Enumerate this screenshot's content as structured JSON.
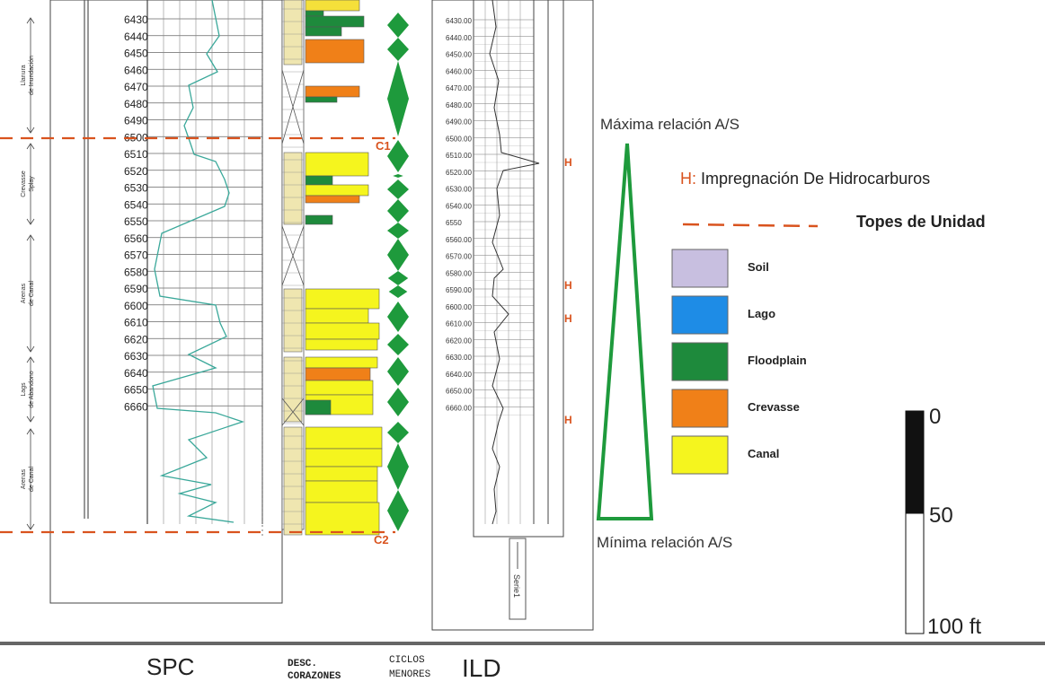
{
  "spc_track": {
    "depth_ticks": [
      "6430",
      "6440",
      "6450",
      "6460",
      "6470",
      "6480",
      "6490",
      "6500",
      "6510",
      "6520",
      "6530",
      "6540",
      "6550",
      "6560",
      "6570",
      "6580",
      "6590",
      "6600",
      "6610",
      "6620",
      "6630",
      "6640",
      "6650",
      "6660"
    ],
    "units": [
      {
        "label_lines": [
          "Llanura",
          "de Inundación"
        ]
      },
      {
        "label_lines": [
          "Crevasse",
          "Splay"
        ]
      },
      {
        "label_lines": [
          "Arenas",
          "de Canal"
        ]
      },
      {
        "label_lines": [
          "Lags",
          "de Abandono"
        ]
      },
      {
        "label_lines": [
          "Arenas",
          "de Canal"
        ]
      }
    ],
    "title": "SPC"
  },
  "core_track": {
    "title_line1": "DESC.",
    "title_line2": "CORAZONES"
  },
  "cycles_track": {
    "title_line1": "CICLOS",
    "title_line2": "MENORES"
  },
  "ild_track": {
    "depth_ticks": [
      "6430.00",
      "6440.00",
      "6450.00",
      "6460.00",
      "6470.00",
      "6480.00",
      "6490.00",
      "6500.00",
      "6510.00",
      "6520.00",
      "6530.00",
      "6540.00",
      "6550",
      "6560.00",
      "6570.00",
      "6580.00",
      "6590.00",
      "6600.00",
      "6610.00",
      "6620.00",
      "6630.00",
      "6640.00",
      "6650.00",
      "6660.00"
    ],
    "title": "ILD",
    "series_label": "Serie1",
    "h_marks": [
      "H",
      "H",
      "H",
      "H"
    ]
  },
  "boundaries": {
    "top": "C1",
    "bottom": "C2"
  },
  "as_ratio": {
    "max_label": "Máxima relación A/S",
    "min_label": "Mínima relación A/S"
  },
  "legend": {
    "h_prefix": "H:",
    "h_text": " Impregnación De Hidrocarburos",
    "tops_text": "Topes de Unidad",
    "items": [
      {
        "label": "Soil",
        "color": "#c8bfe0"
      },
      {
        "label": "Lago",
        "color": "#1e8ce6"
      },
      {
        "label": "Floodplain",
        "color": "#1e8a3c"
      },
      {
        "label": "Crevasse",
        "color": "#f08018"
      },
      {
        "label": "Canal",
        "color": "#f5f51e"
      }
    ]
  },
  "scale_bar": {
    "labels": [
      "0",
      "50",
      "100 ft"
    ]
  },
  "colors": {
    "boundary": "#d9531e",
    "cycles": "#1e9a3c",
    "spc_curve": "#3aa89a",
    "h_mark": "#d9531e"
  }
}
